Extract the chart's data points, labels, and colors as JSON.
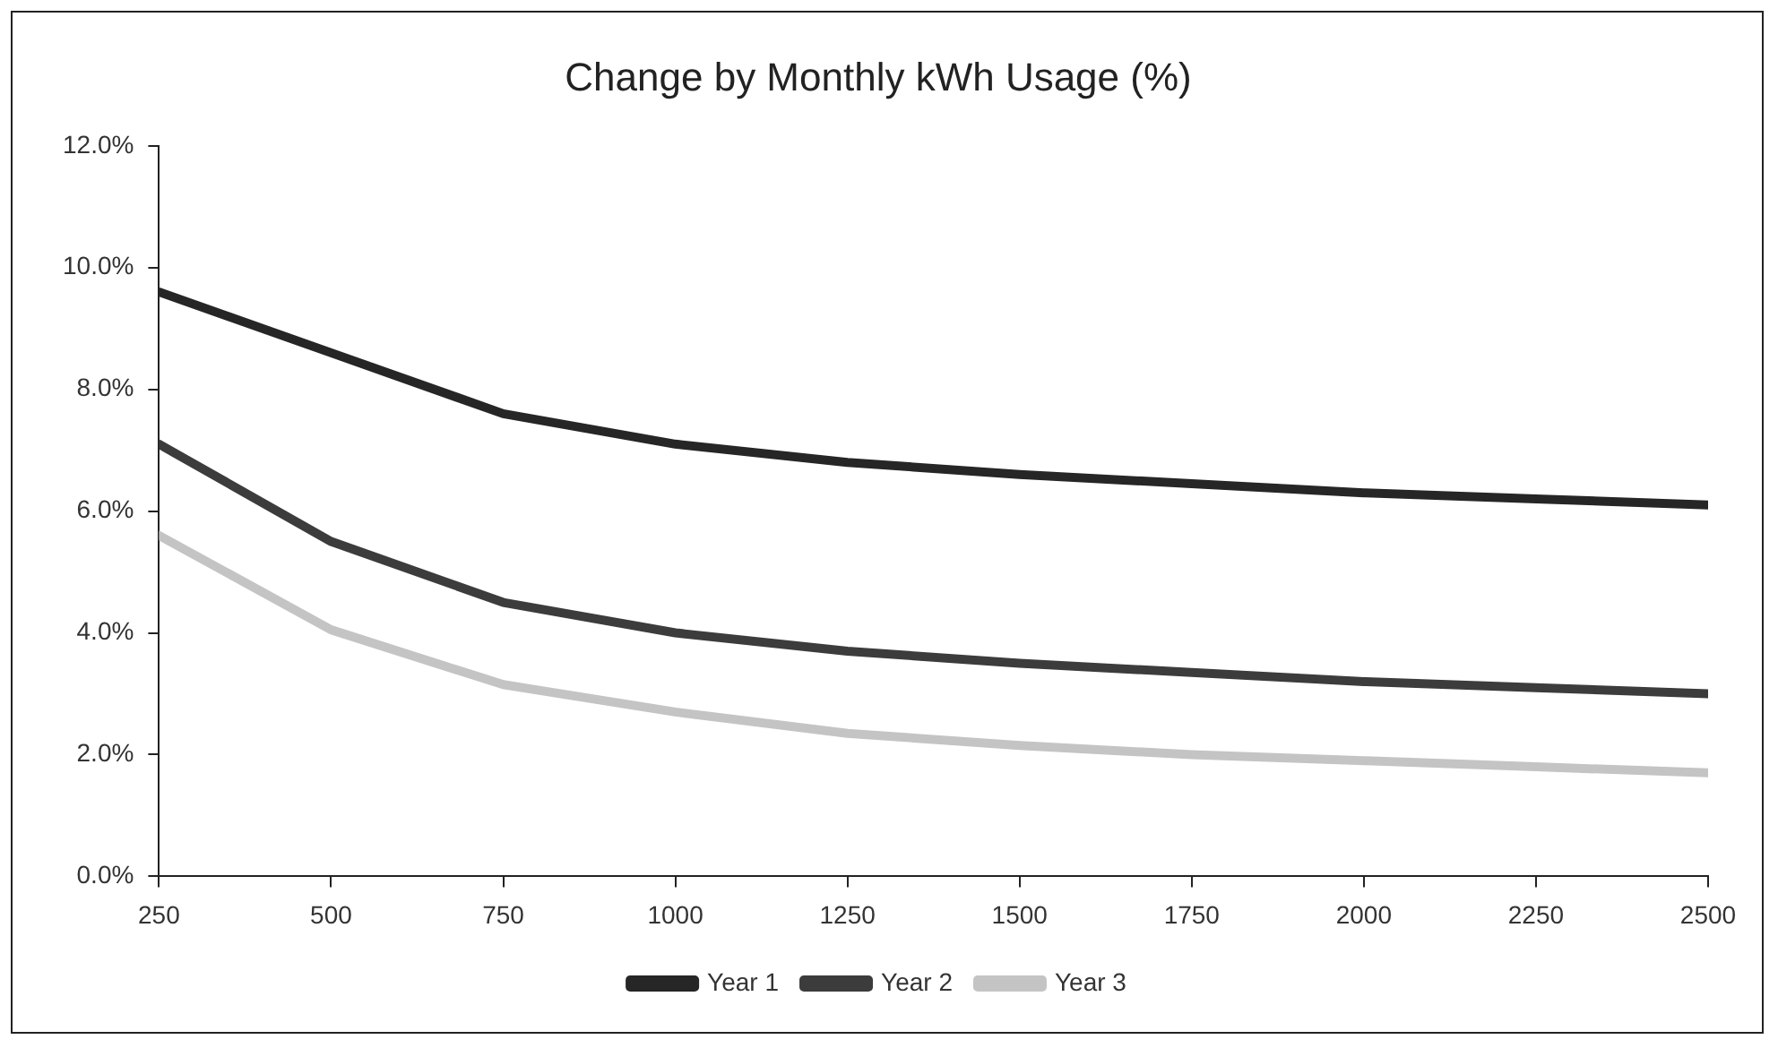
{
  "chart_data": {
    "type": "line",
    "title": "Change by Monthly kWh Usage (%)",
    "x": [
      250,
      500,
      750,
      1000,
      1250,
      1500,
      1750,
      2000,
      2250,
      2500
    ],
    "xlim": [
      250,
      2500
    ],
    "xticks": [
      250,
      500,
      750,
      1000,
      1250,
      1500,
      1750,
      2000,
      2250,
      2500
    ],
    "ylim": [
      0,
      12
    ],
    "yticks": [
      {
        "value": 0,
        "label": "0.0%"
      },
      {
        "value": 2,
        "label": "2.0%"
      },
      {
        "value": 4,
        "label": "4.0%"
      },
      {
        "value": 6,
        "label": "6.0%"
      },
      {
        "value": 8,
        "label": "8.0%"
      },
      {
        "value": 10,
        "label": "10.0%"
      },
      {
        "value": 12,
        "label": "12.0%"
      }
    ],
    "grid": false,
    "legend": "bottom",
    "marker": "none",
    "line_style": "solid",
    "series": [
      {
        "name": "Year 1",
        "color": "#262626",
        "values": [
          9.6,
          8.6,
          7.6,
          7.1,
          6.8,
          6.6,
          6.45,
          6.3,
          6.2,
          6.1
        ]
      },
      {
        "name": "Year 2",
        "color": "#3c3c3c",
        "values": [
          7.1,
          5.5,
          4.5,
          4.0,
          3.7,
          3.5,
          3.35,
          3.2,
          3.1,
          3.0
        ]
      },
      {
        "name": "Year 3",
        "color": "#c4c4c4",
        "values": [
          5.6,
          4.05,
          3.15,
          2.7,
          2.35,
          2.15,
          2.0,
          1.9,
          1.8,
          1.7
        ]
      }
    ]
  }
}
